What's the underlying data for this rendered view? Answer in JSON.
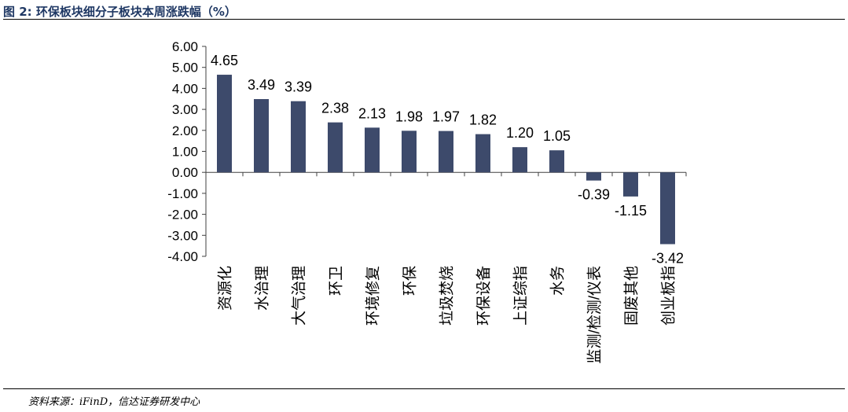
{
  "figure": {
    "label": "图 2:",
    "title": "环保板块细分子板块本周涨跌幅（%）"
  },
  "source": "资料来源：iFinD，信达证券研发中心",
  "colors": {
    "bar": "#3d4a6b",
    "axis": "#404040",
    "title": "#1f3864",
    "text": "#000000"
  },
  "chart_data": {
    "type": "bar",
    "title": "",
    "xlabel": "",
    "ylabel": "",
    "ylim": [
      -4,
      6
    ],
    "yticks": [
      "6.00",
      "5.00",
      "4.00",
      "3.00",
      "2.00",
      "1.00",
      "0.00",
      "-1.00",
      "-2.00",
      "-3.00",
      "-4.00"
    ],
    "grid": false,
    "legend": "none",
    "categories": [
      "资源化",
      "水治理",
      "大气治理",
      "环卫",
      "环境修复",
      "环保",
      "垃圾焚烧",
      "环保设备",
      "上证综指",
      "水务",
      "监测/检测/仪表",
      "固废其他",
      "创业板指"
    ],
    "values": [
      4.65,
      3.49,
      3.39,
      2.38,
      2.13,
      1.98,
      1.97,
      1.82,
      1.2,
      1.05,
      -0.39,
      -1.15,
      -3.42
    ],
    "value_labels": [
      "4.65",
      "3.49",
      "3.39",
      "2.38",
      "2.13",
      "1.98",
      "1.97",
      "1.82",
      "1.20",
      "1.05",
      "-0.39",
      "-1.15",
      "-3.42"
    ]
  }
}
